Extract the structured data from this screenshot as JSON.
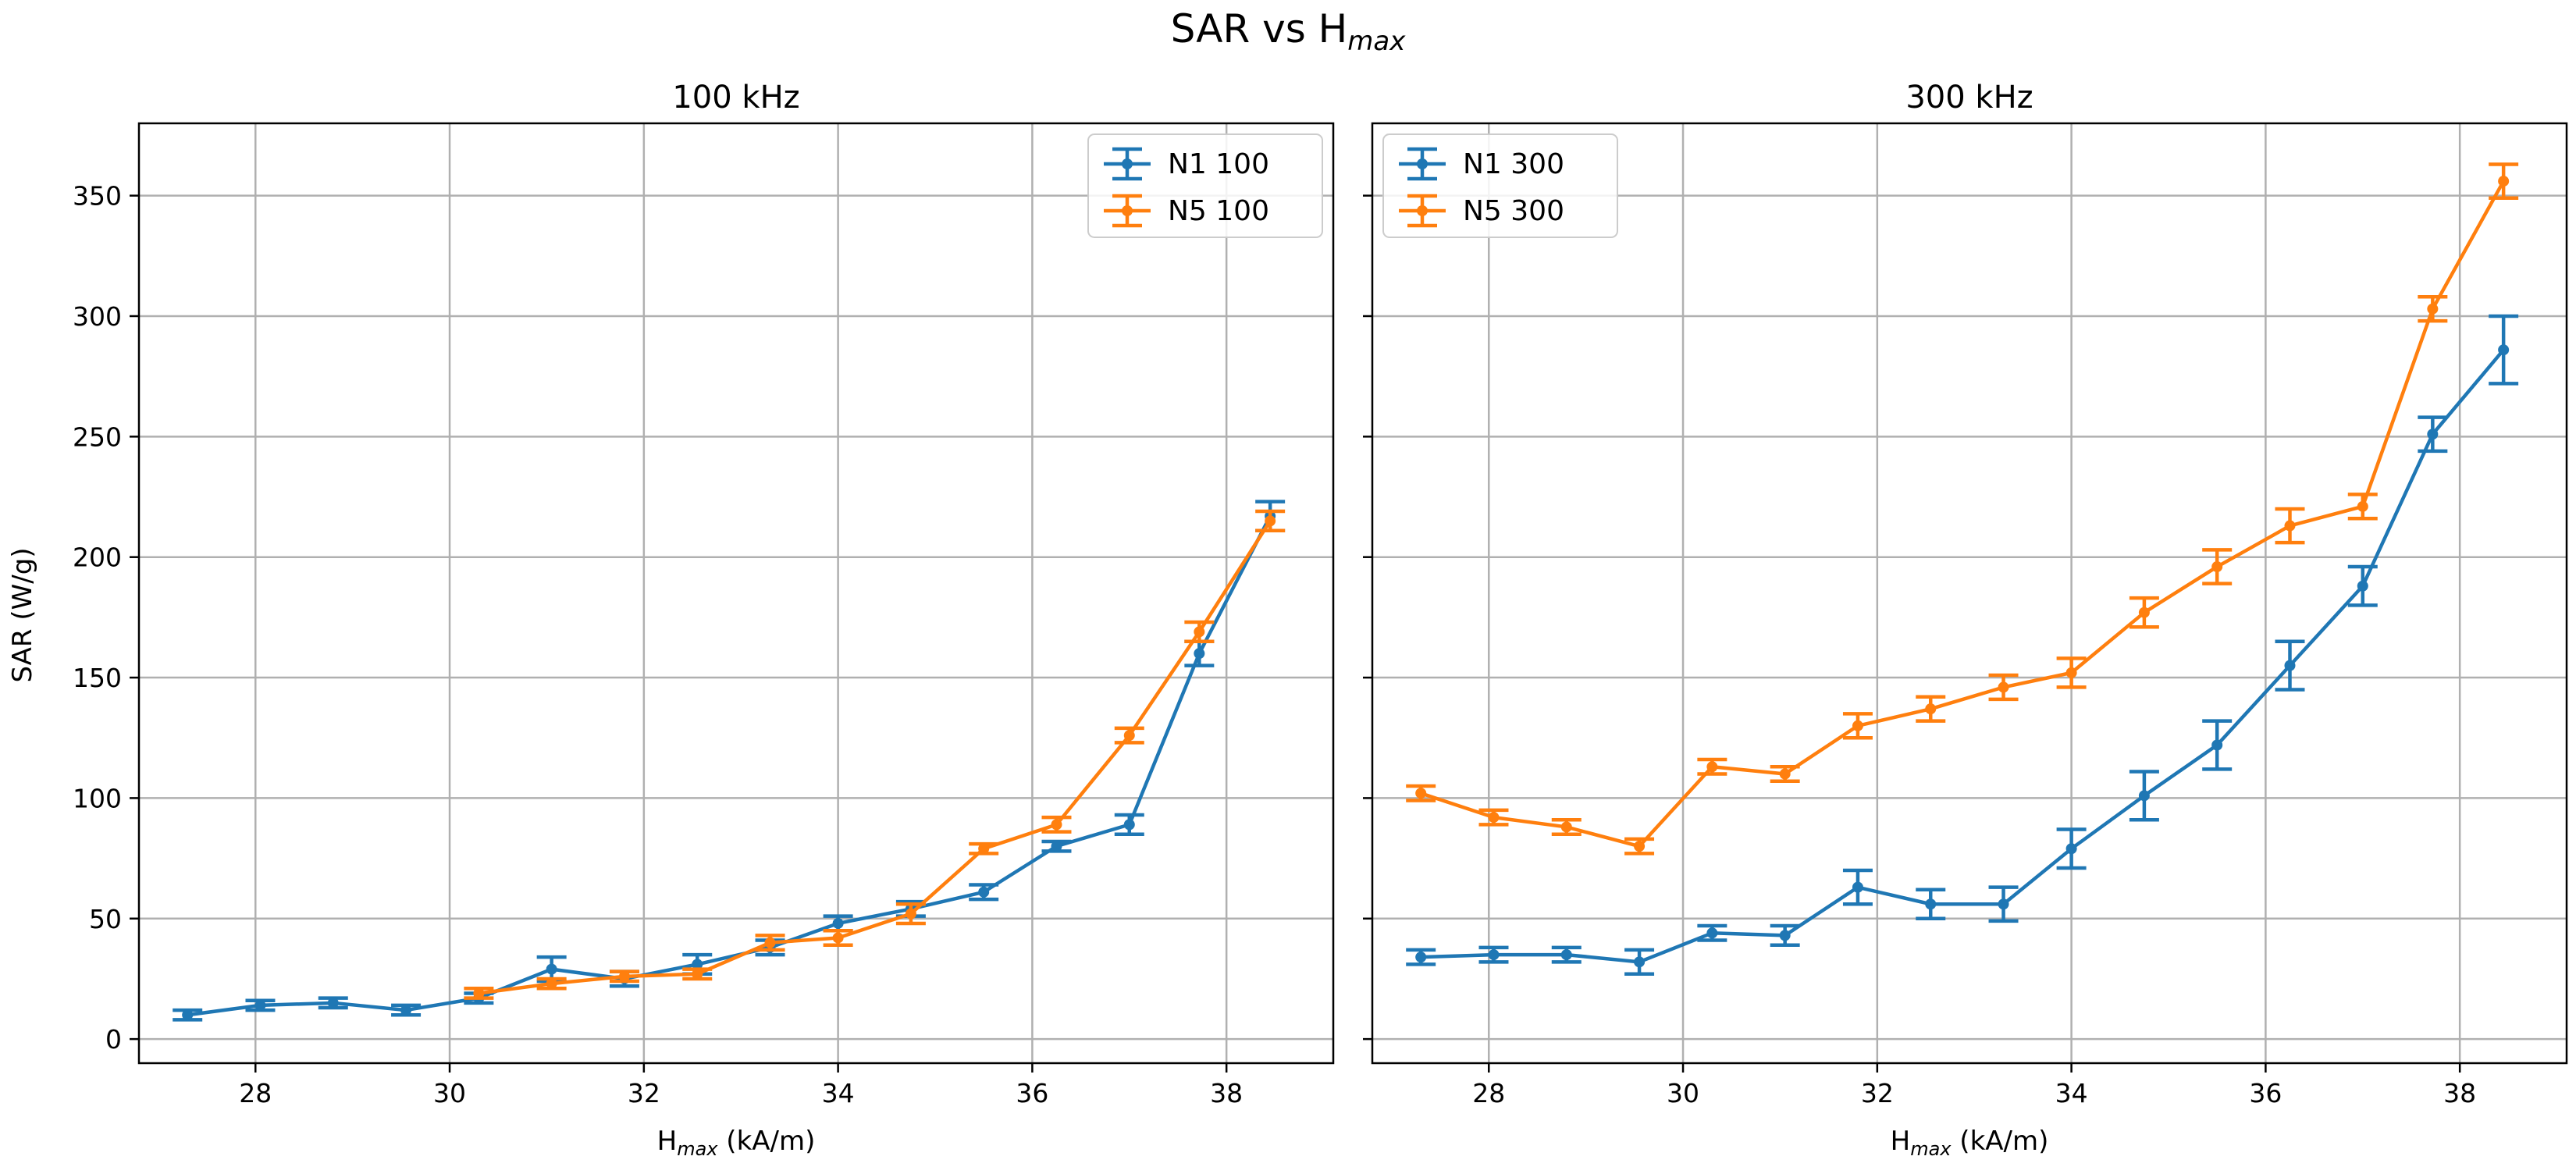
{
  "figure": {
    "title_main": "SAR vs H",
    "title_sub": "max",
    "ylabel": "SAR (W/g)",
    "xlabel_main": "H",
    "xlabel_sub": "max",
    "xlabel_rest": " (kA/m)"
  },
  "colors": {
    "N1": "#1f77b4",
    "N5": "#ff7f0e",
    "grid": "#b0b0b0"
  },
  "chart_data": [
    {
      "type": "line",
      "error_bars": true,
      "title": "100 kHz",
      "xlim": [
        26.8,
        39.1
      ],
      "ylim": [
        -10,
        380
      ],
      "xticks": [
        28,
        30,
        32,
        34,
        36,
        38
      ],
      "yticks": [
        0,
        50,
        100,
        150,
        200,
        250,
        300,
        350
      ],
      "grid": true,
      "legend_position": "top-right",
      "series": [
        {
          "name": "N1 100",
          "color_key": "N1",
          "x": [
            27.3,
            28.05,
            28.8,
            29.55,
            30.3,
            31.05,
            31.8,
            32.55,
            33.3,
            34.0,
            34.75,
            35.5,
            36.25,
            37.0,
            37.72,
            38.45
          ],
          "y": [
            10,
            14,
            15,
            12,
            17,
            29,
            25,
            31,
            38,
            48,
            54,
            61,
            80,
            89,
            160,
            217
          ],
          "err": [
            2,
            2,
            2,
            2,
            2,
            5,
            3,
            4,
            3,
            3,
            3,
            3,
            2,
            4,
            5,
            6
          ]
        },
        {
          "name": "N5 100",
          "color_key": "N5",
          "x": [
            30.3,
            31.05,
            31.8,
            32.55,
            33.3,
            34.0,
            34.75,
            35.5,
            36.25,
            37.0,
            37.72,
            38.45
          ],
          "y": [
            19,
            23,
            26,
            27,
            40,
            42,
            52,
            79,
            89,
            126,
            169,
            215
          ],
          "err": [
            2,
            2,
            2,
            2,
            3,
            3,
            4,
            2,
            3,
            3,
            4,
            4
          ]
        }
      ]
    },
    {
      "type": "line",
      "error_bars": true,
      "title": "300 kHz",
      "xlim": [
        26.8,
        39.1
      ],
      "ylim": [
        -10,
        380
      ],
      "xticks": [
        28,
        30,
        32,
        34,
        36,
        38
      ],
      "yticks": [
        0,
        50,
        100,
        150,
        200,
        250,
        300,
        350
      ],
      "grid": true,
      "legend_position": "top-left",
      "series": [
        {
          "name": "N1 300",
          "color_key": "N1",
          "x": [
            27.3,
            28.05,
            28.8,
            29.55,
            30.3,
            31.05,
            31.8,
            32.55,
            33.3,
            34.0,
            34.75,
            35.5,
            36.25,
            37.0,
            37.72,
            38.45
          ],
          "y": [
            34,
            35,
            35,
            32,
            44,
            43,
            63,
            56,
            56,
            79,
            101,
            122,
            155,
            188,
            251,
            286
          ],
          "err": [
            3,
            3,
            3,
            5,
            3,
            4,
            7,
            6,
            7,
            8,
            10,
            10,
            10,
            8,
            7,
            14
          ]
        },
        {
          "name": "N5 300",
          "color_key": "N5",
          "x": [
            27.3,
            28.05,
            28.8,
            29.55,
            30.3,
            31.05,
            31.8,
            32.55,
            33.3,
            34.0,
            34.75,
            35.5,
            36.25,
            37.0,
            37.72,
            38.45
          ],
          "y": [
            102,
            92,
            88,
            80,
            113,
            110,
            130,
            137,
            146,
            152,
            177,
            196,
            213,
            221,
            303,
            356
          ],
          "err": [
            3,
            3,
            3,
            3,
            3,
            3,
            5,
            5,
            5,
            6,
            6,
            7,
            7,
            5,
            5,
            7
          ]
        }
      ]
    }
  ]
}
